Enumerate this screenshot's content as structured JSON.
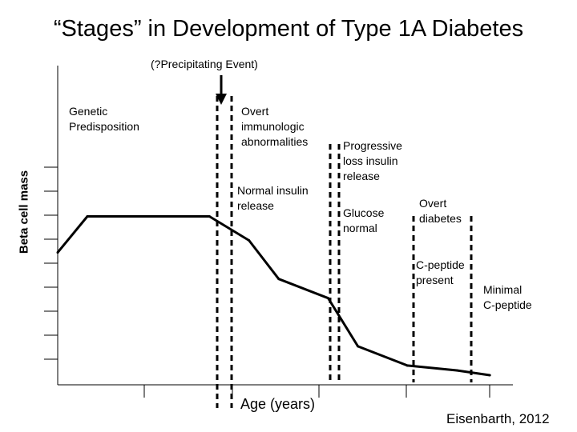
{
  "chart_data": {
    "type": "line",
    "title": "“Stages” in Development of Type 1A Diabetes",
    "xlabel": "Age (years)",
    "ylabel": "Beta cell mass",
    "credit": "Eisenbarth, 2012",
    "precipitating_event": "(?Precipitating Event)",
    "series": [
      {
        "x": [
          0,
          0.9,
          4.6,
          5.8,
          6.7,
          8.2,
          9.1,
          10.6,
          12.1,
          13.1
        ],
        "y": [
          5.5,
          7,
          7,
          6,
          4.4,
          3.6,
          1.6,
          0.8,
          0.6,
          0.4
        ]
      }
    ],
    "xlim": [
      0,
      13.8
    ],
    "ylim": [
      0,
      13
    ],
    "stage_labels": [
      {
        "id": "genetic",
        "text": "Genetic\nPredisposition"
      },
      {
        "id": "immunologic",
        "text": "Overt\nimmunologic\nabnormalities"
      },
      {
        "id": "normal_insulin",
        "text": "Normal insulin\nrelease"
      },
      {
        "id": "progressive",
        "text": "Progressive\nloss insulin\nrelease"
      },
      {
        "id": "glucose_normal",
        "text": "Glucose\nnormal"
      },
      {
        "id": "overt_diabetes",
        "text": "Overt\ndiabetes"
      },
      {
        "id": "c_peptide",
        "text": "C-peptide\npresent"
      },
      {
        "id": "minimal_c_peptide",
        "text": "Minimal\nC-peptide"
      }
    ]
  }
}
